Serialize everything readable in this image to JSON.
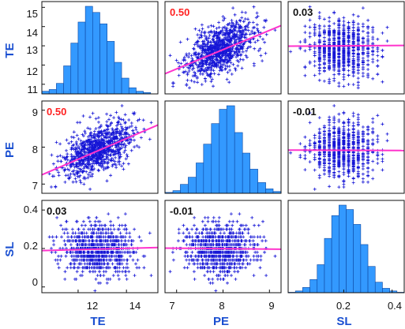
{
  "colors": {
    "scatter": "#1515d6",
    "histogram_fill": "#3399ff",
    "histogram_edge": "#0d47a1",
    "fit_line": "#ff33cc",
    "significant": "#ff2222",
    "not_significant": "#111111",
    "axis_label": "#1a4fd1"
  },
  "chart_data": {
    "type": "scatter-matrix",
    "title": "",
    "variables": [
      {
        "name": "TE",
        "ticks": [
          12,
          14
        ],
        "range": [
          10.5,
          15.3
        ],
        "y_ticks": [
          11,
          12,
          13,
          14,
          15
        ]
      },
      {
        "name": "PE",
        "ticks": [
          7,
          8,
          9
        ],
        "range": [
          6.75,
          9.25
        ],
        "y_ticks": [
          7,
          8,
          9
        ]
      },
      {
        "name": "SL",
        "ticks": [
          0.2,
          0.4
        ],
        "range": [
          -0.03,
          0.45
        ],
        "y_ticks": [
          0,
          0.2,
          0.4
        ]
      }
    ],
    "tick_labels": {
      "TE_x": [
        "12",
        "14"
      ],
      "PE_x": [
        "7",
        "8",
        "9"
      ],
      "SL_x": [
        "0.2",
        "0.4"
      ],
      "TE_y": [
        "11",
        "12",
        "13",
        "14",
        "15"
      ],
      "PE_y": [
        "7",
        "8",
        "9"
      ],
      "SL_y": [
        "0",
        "0.2",
        "0.4"
      ]
    },
    "correlations": [
      {
        "row": "TE",
        "col": "PE",
        "label": "0.50",
        "value": 0.5,
        "significant": true
      },
      {
        "row": "TE",
        "col": "SL",
        "label": "0.03",
        "value": 0.03,
        "significant": false
      },
      {
        "row": "PE",
        "col": "TE",
        "label": "0.50",
        "value": 0.5,
        "significant": true
      },
      {
        "row": "PE",
        "col": "SL",
        "label": "-0.01",
        "value": -0.01,
        "significant": false
      },
      {
        "row": "SL",
        "col": "TE",
        "label": "0.03",
        "value": 0.03,
        "significant": false
      },
      {
        "row": "SL",
        "col": "PE",
        "label": "-0.01",
        "value": -0.01,
        "significant": false
      }
    ],
    "fit_lines": [
      {
        "row": "TE",
        "col": "PE",
        "x": [
          6.75,
          9.25
        ],
        "y": [
          11.55,
          14.05
        ]
      },
      {
        "row": "TE",
        "col": "SL",
        "x": [
          -0.03,
          0.45
        ],
        "y": [
          12.98,
          13.02
        ]
      },
      {
        "row": "PE",
        "col": "TE",
        "x": [
          10.5,
          15.3
        ],
        "y": [
          7.25,
          8.6
        ]
      },
      {
        "row": "PE",
        "col": "SL",
        "x": [
          -0.03,
          0.45
        ],
        "y": [
          7.92,
          7.91
        ]
      },
      {
        "row": "SL",
        "col": "TE",
        "x": [
          10.5,
          15.3
        ],
        "y": [
          0.189,
          0.205
        ]
      },
      {
        "row": "SL",
        "col": "PE",
        "x": [
          6.75,
          9.25
        ],
        "y": [
          0.202,
          0.196
        ]
      }
    ],
    "histograms": {
      "TE": {
        "bin_edges": [
          10.5,
          10.8,
          11.1,
          11.4,
          11.7,
          12.0,
          12.3,
          12.6,
          12.9,
          13.2,
          13.5,
          13.8,
          14.1,
          14.4,
          14.7,
          15.0,
          15.3
        ],
        "counts": [
          0.03,
          0.05,
          0.12,
          0.32,
          0.58,
          0.82,
          1.0,
          0.93,
          0.8,
          0.6,
          0.36,
          0.18,
          0.07,
          0.03,
          0.015,
          0.0
        ]
      },
      "PE": {
        "bin_edges": [
          6.75,
          6.92,
          7.08,
          7.25,
          7.42,
          7.58,
          7.75,
          7.92,
          8.08,
          8.25,
          8.42,
          8.58,
          8.75,
          8.92,
          9.08,
          9.25
        ],
        "counts": [
          0.01,
          0.03,
          0.1,
          0.18,
          0.34,
          0.55,
          0.78,
          0.94,
          0.98,
          0.68,
          0.45,
          0.27,
          0.12,
          0.05,
          0.02
        ]
      },
      "SL": {
        "bin_edges": [
          -0.03,
          0.0,
          0.03,
          0.06,
          0.09,
          0.12,
          0.15,
          0.18,
          0.21,
          0.24,
          0.27,
          0.3,
          0.33,
          0.36,
          0.39,
          0.42,
          0.45
        ],
        "counts": [
          0.005,
          0.02,
          0.06,
          0.15,
          0.32,
          0.62,
          0.88,
          1.0,
          0.95,
          0.78,
          0.55,
          0.3,
          0.12,
          0.05,
          0.02,
          0.005
        ]
      }
    },
    "distributions": {
      "TE": {
        "mean": 12.85,
        "sd": 0.72
      },
      "PE": {
        "mean": 7.95,
        "sd": 0.38
      },
      "SL": {
        "mean": 0.195,
        "sd": 0.065,
        "step": 0.02
      }
    },
    "points_per_panel": 900,
    "grid": false,
    "legend": "none"
  }
}
